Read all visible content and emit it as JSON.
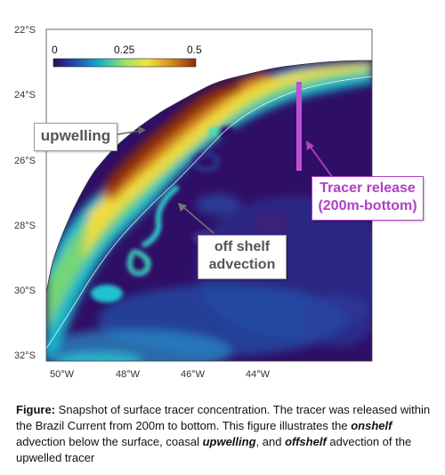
{
  "colorbar": {
    "ticks": [
      {
        "value": 0,
        "label": "0"
      },
      {
        "value": 0.25,
        "label": "0.25"
      },
      {
        "value": 0.5,
        "label": "0.5"
      }
    ],
    "range": [
      0,
      0.5
    ],
    "colors": [
      "#2d0c5f",
      "#1f4fb0",
      "#15b3c8",
      "#9ae26a",
      "#f2e63e",
      "#d58a1d",
      "#8c2d10"
    ]
  },
  "axes": {
    "lat_labels": [
      "22°S",
      "24°S",
      "26°S",
      "28°S",
      "30°S",
      "32°S"
    ],
    "lon_labels": [
      "50°W",
      "48°W",
      "46°W",
      "44°W"
    ]
  },
  "callouts": {
    "upwelling": "upwelling",
    "offshelf_line1": "off shelf",
    "offshelf_line2": "advection",
    "tracer_line1": "Tracer release",
    "tracer_line2": "(200m-bottom)"
  },
  "caption": {
    "label": "Figure:",
    "part1": " Snapshot of surface tracer concentration. The tracer was released within the Brazil Current from 200m to bottom. This figure illustrates the ",
    "onshelf": "onshelf",
    "part2": " advection below the surface, coasal ",
    "upwelling": "upwelling",
    "part3": ", and ",
    "offshelf": "offshelf",
    "part4": " advection of the upwelled tracer"
  },
  "colors": {
    "accent_purple": "#b13fc7",
    "callout_border": "#9a9a9a",
    "callout_text": "#555555"
  }
}
